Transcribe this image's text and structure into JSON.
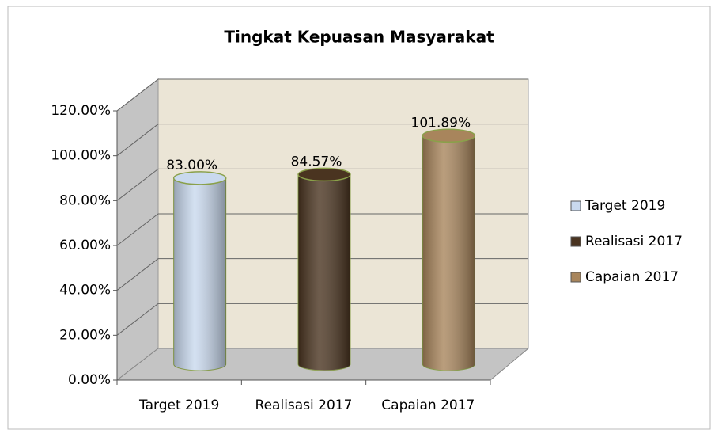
{
  "chart_data": {
    "type": "cylinder",
    "title": "Tingkat Kepuasan Masyarakat",
    "categories": [
      "Target 2019",
      "Realisasi 2017",
      "Capaian 2017"
    ],
    "values": [
      83,
      84.57,
      101.89
    ],
    "value_labels": [
      "83.00%",
      "84.57%",
      "101.89%"
    ],
    "colors": [
      "#c9d9ee",
      "#4a3420",
      "#a8855c"
    ],
    "ylim": [
      0,
      120
    ],
    "yticks": [
      {
        "value": 0,
        "label": "0.00%"
      },
      {
        "value": 20,
        "label": "20.00%"
      },
      {
        "value": 40,
        "label": "40.00%"
      },
      {
        "value": 60,
        "label": "60.00%"
      },
      {
        "value": 80,
        "label": "80.00%"
      },
      {
        "value": 100,
        "label": "100.00%"
      },
      {
        "value": 120,
        "label": "120.00%"
      }
    ],
    "grid": true,
    "legend": "right"
  }
}
